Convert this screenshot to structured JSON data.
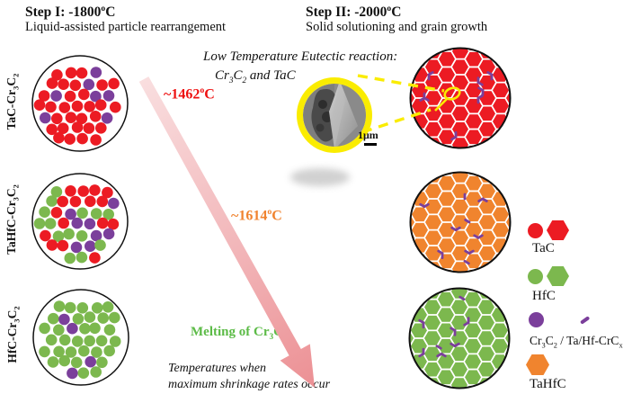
{
  "steps": {
    "step1_title": "Step I:  -1800^oC",
    "step1_subtitle": "Liquid-assisted particle rearrangement",
    "step2_title": "Step II: -2000^oC",
    "step2_subtitle": "Solid solutioning and grain growth"
  },
  "row_labels": [
    "TaC-Cr_3C_2",
    "TaHfC-Cr_3C_2",
    "HfC-Cr_3C_2"
  ],
  "annotations": {
    "eutectic_line1": "Low Temperature Eutectic reaction:",
    "eutectic_line2": "Cr_3C_2 and TaC",
    "temp1": "~1462^oC",
    "temp2": "~1614^oC",
    "melting": "Melting of Cr_3C_2",
    "shrinkage_line1": "Temperatures when",
    "shrinkage_line2": "maximum shrinkage rates occur",
    "scale_label": "1μm"
  },
  "colors": {
    "tac_red": "#EC1B23",
    "hfc_green": "#7CB84E",
    "cr3c2_purple": "#7B3F9B",
    "tahfc_orange": "#F0842E",
    "temp1_color": "#EE1111",
    "temp2_color": "#F0832F",
    "melting_color": "#5CBB47",
    "callout_yellow": "#FAEC00",
    "arrow_light": "#F9DEDF",
    "arrow_dark": "#EC9094",
    "grain_boundary": "#FFFFFF",
    "outline": "#111111"
  },
  "legend": [
    {
      "label": "TaC",
      "color": "#EC1B23",
      "shapes": [
        "circle",
        "hexagon"
      ]
    },
    {
      "label": "HfC",
      "color": "#7CB84E",
      "shapes": [
        "circle",
        "hexagon"
      ]
    },
    {
      "label": "Cr_3C_2 / Ta/Hf-CrC_x",
      "color": "#7B3F9B",
      "shapes": [
        "circle",
        "sliver"
      ]
    },
    {
      "label": "TaHfC",
      "color": "#F0842E",
      "shapes": [
        "hexagon"
      ]
    }
  ],
  "figure": {
    "powder_circles": [
      {
        "key": "tac-cr3c2",
        "seed": 7,
        "composition": [
          {
            "color": "#EC1B23",
            "weight": 0.86
          },
          {
            "color": "#7B3F9B",
            "weight": 0.14
          }
        ]
      },
      {
        "key": "tahfc-cr3c2",
        "seed": 13,
        "composition": [
          {
            "color": "#EC1B23",
            "weight": 0.42
          },
          {
            "color": "#7CB84E",
            "weight": 0.36
          },
          {
            "color": "#7B3F9B",
            "weight": 0.22
          }
        ]
      },
      {
        "key": "hfc-cr3c2",
        "seed": 21,
        "composition": [
          {
            "color": "#7CB84E",
            "weight": 0.86
          },
          {
            "color": "#7B3F9B",
            "weight": 0.14
          }
        ]
      }
    ],
    "powder_geometry": {
      "dot_radius": 6.3,
      "spacing": 14,
      "jitter": 3
    },
    "grain_circles": [
      {
        "key": "tac-cr3c2",
        "seed": 31,
        "fill": "#EC1B23",
        "marks": 8
      },
      {
        "key": "tahfc-cr3c2",
        "seed": 47,
        "fill": "#F0842E",
        "marks": 9
      },
      {
        "key": "hfc-cr3c2",
        "seed": 59,
        "fill": "#7CB84E",
        "marks": 8
      }
    ],
    "grain_geometry": {
      "hex_radius": 10,
      "mark_color": "#7B3F9B"
    }
  }
}
